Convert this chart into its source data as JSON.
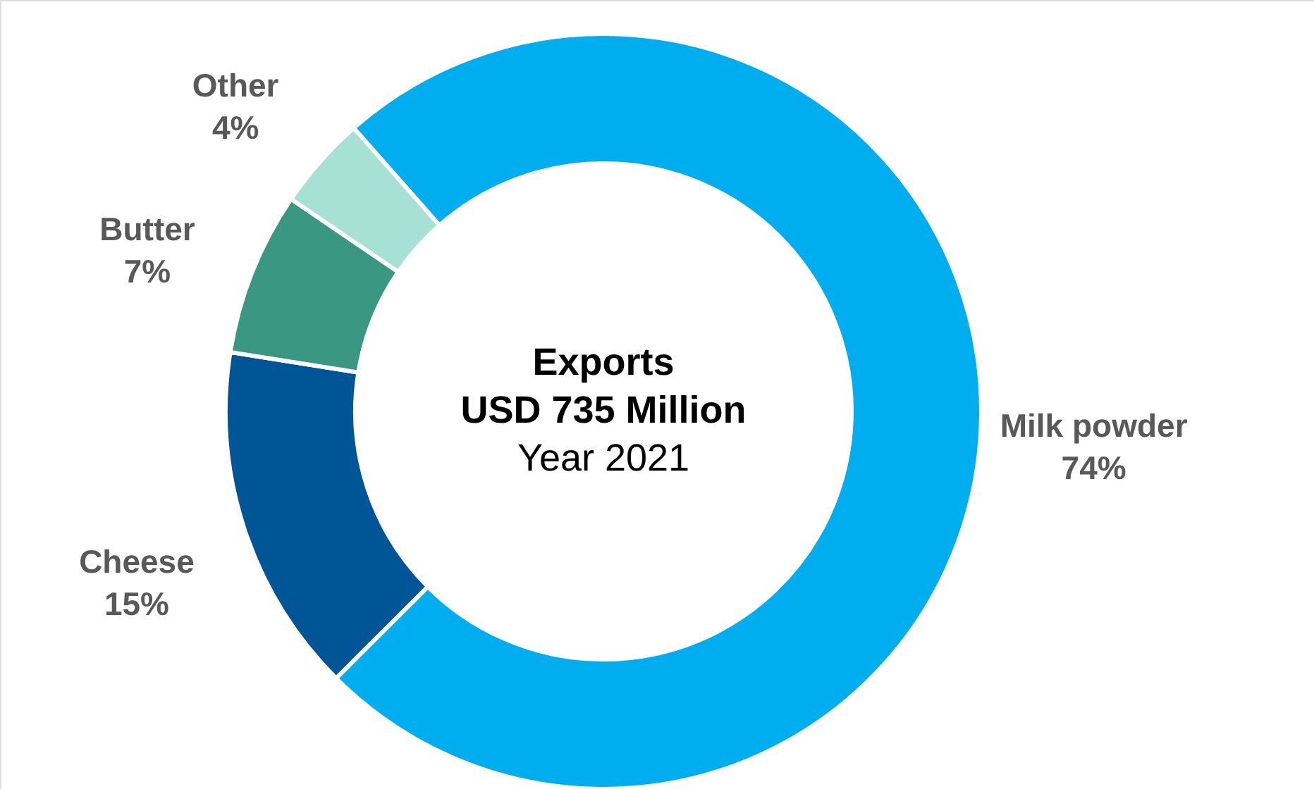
{
  "chart_data": {
    "type": "donut",
    "title": "Exports",
    "annotations": [
      "USD 735 Million",
      "Year 2021"
    ],
    "categories": [
      "Milk powder",
      "Cheese",
      "Butter",
      "Other"
    ],
    "values": [
      74,
      15,
      7,
      4
    ],
    "value_labels": [
      "74%",
      "15%",
      "7%",
      "4%"
    ],
    "colors": [
      "#00aeef",
      "#005596",
      "#3a9882",
      "#a7e0d4"
    ]
  }
}
